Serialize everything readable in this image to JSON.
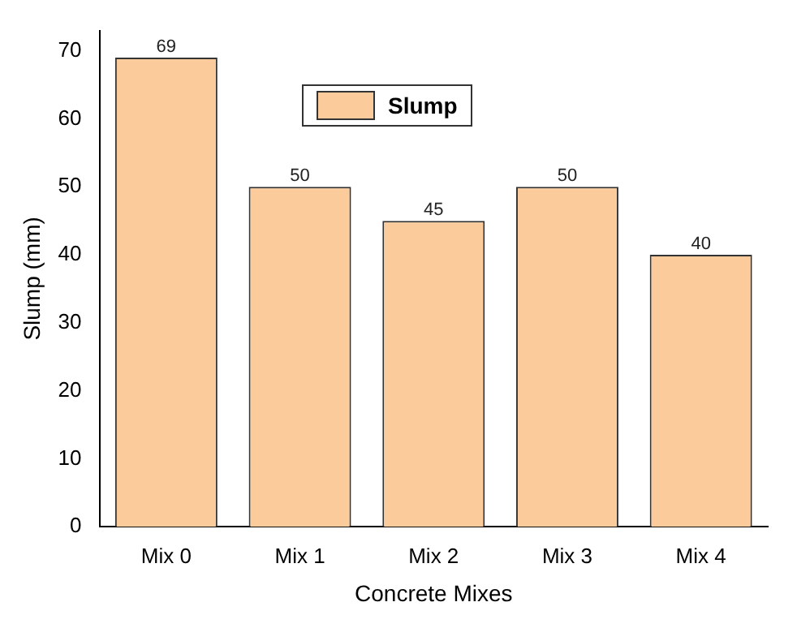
{
  "chart_data": {
    "type": "bar",
    "xlabel": "Concrete Mixes",
    "ylabel": "Slump (mm)",
    "categories": [
      "Mix 0",
      "Mix 1",
      "Mix 2",
      "Mix 3",
      "Mix 4"
    ],
    "series": [
      {
        "name": "Slump",
        "color": "#fbcb9c",
        "values": [
          69,
          50,
          45,
          50,
          40
        ]
      }
    ],
    "ylim": [
      0,
      73
    ],
    "yticks": [
      0,
      10,
      20,
      30,
      40,
      50,
      60,
      70
    ],
    "grid": false,
    "legend": "top",
    "data_labels": true
  }
}
